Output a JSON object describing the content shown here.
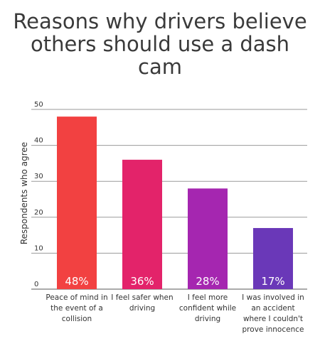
{
  "chart_data": {
    "type": "bar",
    "title_lines": [
      "Reasons why drivers believe",
      "others should use a dash",
      "cam"
    ],
    "ylabel": "Respondents who agree",
    "xlabel": "",
    "ylim": [
      0,
      50
    ],
    "yticks": [
      0,
      10,
      20,
      30,
      40,
      50
    ],
    "grid": true,
    "categories": [
      [
        "Peace of mind in",
        "the event of a",
        "collision"
      ],
      [
        "I feel safer when",
        "driving"
      ],
      [
        "I feel more",
        "confident while",
        "driving"
      ],
      [
        "I was involved in",
        "an accident",
        "where I couldn't",
        "prove innocence"
      ]
    ],
    "values": [
      48,
      36,
      28,
      17
    ],
    "data_labels": [
      "48%",
      "36%",
      "28%",
      "17%"
    ],
    "colors": [
      "#f24141",
      "#e3236a",
      "#a526b0",
      "#6a38b8"
    ]
  }
}
